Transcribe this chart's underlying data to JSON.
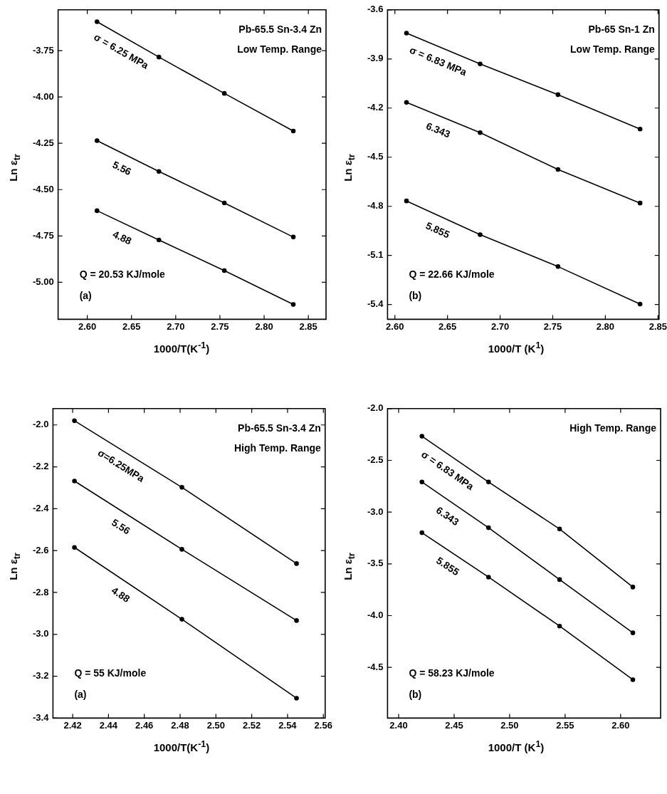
{
  "chart_data": [
    {
      "type": "line",
      "xlabel": "1000/T(K$^{-1}$)",
      "ylabel": "Ln ε$_{tr}$",
      "marker": "circle",
      "line_style": "solid",
      "grid": false,
      "legend": false,
      "xlim": [
        2.567,
        2.87
      ],
      "ylim": [
        -5.2,
        -3.53
      ],
      "xticks": [
        {
          "value": 2.6,
          "label": "2.60"
        },
        {
          "value": 2.65,
          "label": "2.65"
        },
        {
          "value": 2.7,
          "label": "2.70"
        },
        {
          "value": 2.75,
          "label": "2.75"
        },
        {
          "value": 2.8,
          "label": "2.80"
        },
        {
          "value": 2.85,
          "label": "2.85"
        }
      ],
      "yticks": [
        {
          "value": -3.75,
          "label": "-3.75"
        },
        {
          "value": -4.0,
          "label": "-4.00"
        },
        {
          "value": -4.25,
          "label": "-4.25"
        },
        {
          "value": -4.5,
          "label": "-4.50"
        },
        {
          "value": -4.75,
          "label": "-4.75"
        },
        {
          "value": -5.0,
          "label": "-5.00"
        }
      ],
      "x": [
        2.611,
        2.681,
        2.755,
        2.833
      ],
      "series": [
        {
          "name": "σ = 6.25 MPa",
          "color": "#000000",
          "values": [
            -3.594,
            -3.785,
            -3.981,
            -4.184
          ]
        },
        {
          "name": "5.56",
          "color": "#000000",
          "values": [
            -4.236,
            -4.402,
            -4.572,
            -4.756
          ]
        },
        {
          "name": "4.88",
          "color": "#000000",
          "values": [
            -4.614,
            -4.772,
            -4.937,
            -5.12
          ]
        }
      ],
      "annotations": [
        "Pb-65.5 Sn-3.4 Zn",
        "Low Temp. Range",
        "Q = 20.53 KJ/mole",
        "(a)"
      ]
    },
    {
      "type": "line",
      "xlabel": "1000/T (K$^{1}$)",
      "ylabel": "Ln ε$_{tr}$",
      "marker": "circle",
      "line_style": "solid",
      "grid": false,
      "legend": false,
      "xlim": [
        2.593,
        2.851
      ],
      "ylim": [
        -5.49,
        -3.6
      ],
      "xticks": [
        {
          "value": 2.6,
          "label": "2.60"
        },
        {
          "value": 2.65,
          "label": "2.65"
        },
        {
          "value": 2.7,
          "label": "2.70"
        },
        {
          "value": 2.75,
          "label": "2.75"
        },
        {
          "value": 2.8,
          "label": "2.80"
        },
        {
          "value": 2.85,
          "label": "2.85"
        }
      ],
      "yticks": [
        -3.6,
        -3.9,
        -4.2,
        -4.5,
        -4.8,
        -5.1,
        -5.4
      ],
      "x": [
        2.611,
        2.681,
        2.755,
        2.833
      ],
      "series": [
        {
          "name": "σ = 6.83 MPa",
          "color": "#000000",
          "values": [
            -3.742,
            -3.93,
            -4.118,
            -4.328
          ]
        },
        {
          "name": "6.343",
          "color": "#000000",
          "values": [
            -4.165,
            -4.35,
            -4.575,
            -4.78
          ]
        },
        {
          "name": "5.855",
          "color": "#000000",
          "values": [
            -4.767,
            -4.973,
            -5.168,
            -5.397
          ]
        }
      ],
      "annotations": [
        "Pb-65 Sn-1 Zn",
        "Low Temp. Range",
        "Q = 22.66 KJ/mole",
        "(b)"
      ]
    },
    {
      "type": "line",
      "xlabel": "1000/T(K$^{-1}$)",
      "ylabel": "Ln ε$_{tr}$",
      "marker": "circle",
      "line_style": "solid",
      "grid": false,
      "legend": false,
      "xlim": [
        2.409,
        2.561
      ],
      "ylim": [
        -3.4,
        -1.922
      ],
      "xticks": [
        2.42,
        2.44,
        2.46,
        2.48,
        {
          "value": 2.5,
          "label": "2.50"
        },
        2.52,
        2.54,
        2.56
      ],
      "yticks": [
        {
          "value": -2.0,
          "label": "-2.0"
        },
        -2.2,
        -2.4,
        -2.6,
        -2.8,
        {
          "value": -3.0,
          "label": "-3.0"
        },
        -3.2,
        -3.4
      ],
      "x": [
        2.421,
        2.481,
        2.545
      ],
      "series": [
        {
          "name": "σ=6.25MPa",
          "color": "#000000",
          "values": [
            -1.98,
            -2.298,
            -2.662
          ]
        },
        {
          "name": "5.56",
          "color": "#000000",
          "values": [
            -2.268,
            -2.594,
            -2.934
          ]
        },
        {
          "name": "4.88",
          "color": "#000000",
          "values": [
            -2.585,
            -2.928,
            -3.305
          ]
        }
      ],
      "annotations": [
        "Pb-65.5 Sn-3.4 Zn",
        "High Temp. Range",
        "Q = 55 KJ/mole",
        "(a)"
      ]
    },
    {
      "type": "line",
      "xlabel": "1000/T (K$^{1}$)",
      "ylabel": "Ln ε$_{tr}$",
      "marker": "circle",
      "line_style": "solid",
      "grid": false,
      "legend": false,
      "xlim": [
        2.39,
        2.636
      ],
      "ylim": [
        -4.99,
        -2.0
      ],
      "xticks": [
        {
          "value": 2.4,
          "label": "2.40"
        },
        2.45,
        {
          "value": 2.5,
          "label": "2.50"
        },
        2.55,
        {
          "value": 2.6,
          "label": "2.60"
        }
      ],
      "yticks": [
        {
          "value": -2.0,
          "label": "-2.0"
        },
        -2.5,
        {
          "value": -3.0,
          "label": "-3.0"
        },
        -3.5,
        {
          "value": -4.0,
          "label": "-4.0"
        },
        -4.5
      ],
      "x": [
        2.421,
        2.481,
        2.545,
        2.611
      ],
      "series": [
        {
          "name": "σ = 6.83 MPa",
          "color": "#000000",
          "values": [
            -2.267,
            -2.709,
            -3.163,
            -3.724
          ]
        },
        {
          "name": "6.343",
          "color": "#000000",
          "values": [
            -2.709,
            -3.151,
            -3.652,
            -4.166
          ]
        },
        {
          "name": "5.855",
          "color": "#000000",
          "values": [
            -3.199,
            -3.628,
            -4.101,
            -4.619
          ]
        }
      ],
      "annotations": [
        "High Temp. Range",
        "Q = 58.23 KJ/mole",
        "(b)"
      ]
    }
  ]
}
